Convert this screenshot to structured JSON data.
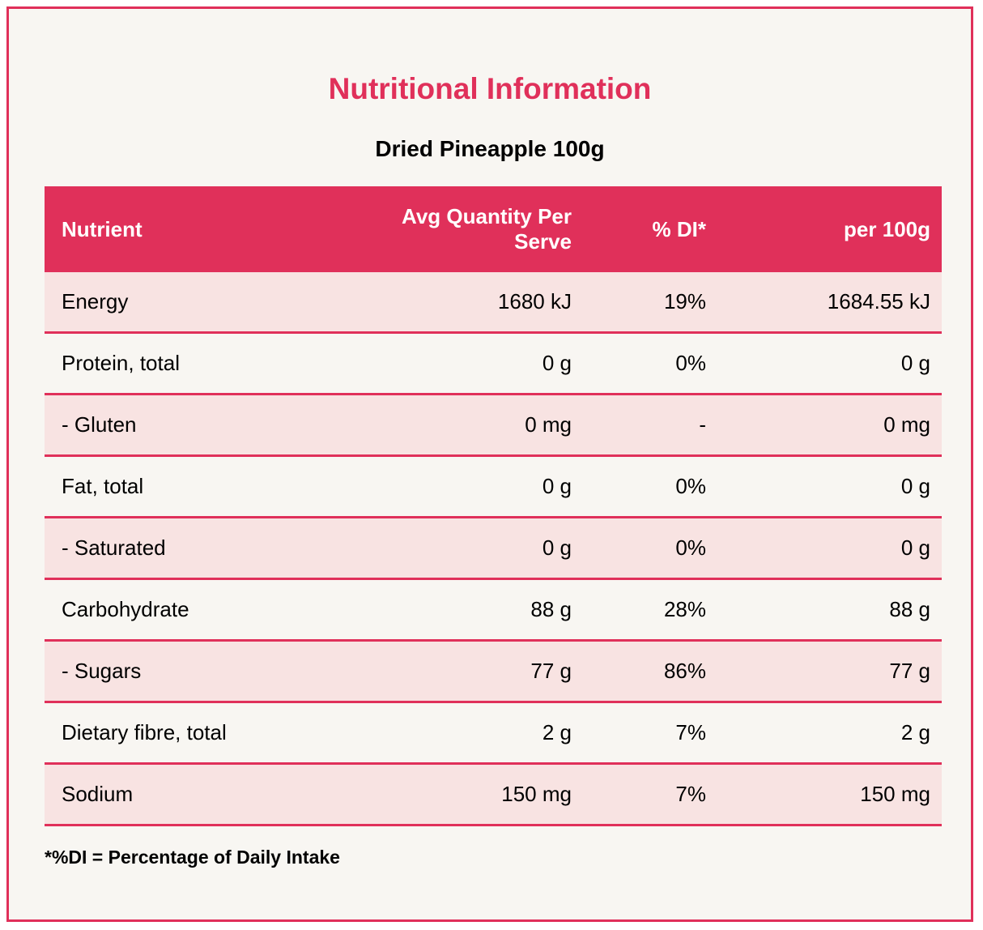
{
  "title": "Nutritional Information",
  "subtitle": "Dried Pineapple 100g",
  "colors": {
    "accent": "#e0305a",
    "row_tint": "#f8e3e2",
    "background": "#f8f6f2"
  },
  "table": {
    "headers": [
      "Nutrient",
      "Avg Quantity Per Serve",
      "% DI*",
      "per 100g"
    ],
    "rows": [
      [
        "Energy",
        "1680 kJ",
        "19%",
        "1684.55 kJ"
      ],
      [
        "Protein, total",
        "0 g",
        "0%",
        "0 g"
      ],
      [
        "- Gluten",
        "0 mg",
        "-",
        "0 mg"
      ],
      [
        "Fat, total",
        "0 g",
        "0%",
        "0 g"
      ],
      [
        "- Saturated",
        "0 g",
        "0%",
        "0 g"
      ],
      [
        "Carbohydrate",
        "88 g",
        "28%",
        "88 g"
      ],
      [
        "- Sugars",
        "77 g",
        "86%",
        "77 g"
      ],
      [
        "Dietary fibre, total",
        "2 g",
        "7%",
        "2 g"
      ],
      [
        "Sodium",
        "150 mg",
        "7%",
        "150 mg"
      ]
    ]
  },
  "footnote": "*%DI = Percentage of Daily Intake"
}
